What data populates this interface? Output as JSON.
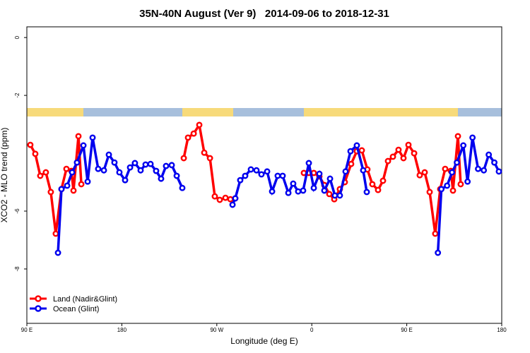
{
  "chart_data": {
    "type": "line",
    "title": "35N-40N August (Ver 9)   2014-09-06 to 2018-12-31",
    "x_label": "Longitude (deg E)",
    "y_label": "XCO2 - MLO trend (ppm)",
    "xlim": [
      90,
      540
    ],
    "xticks": [
      {
        "value": 90,
        "label": "90 E"
      },
      {
        "value": 180,
        "label": "180"
      },
      {
        "value": 270,
        "label": "90 W"
      },
      {
        "value": 360,
        "label": "0"
      },
      {
        "value": 450,
        "label": "90 E"
      },
      {
        "value": 540,
        "label": "180"
      }
    ],
    "ylim": [
      -9.88,
      0.37
    ],
    "yticks": [
      0,
      -2,
      -6,
      -8
    ],
    "legend": "bottom-left",
    "series": [
      {
        "name": "Land (Nadir&Glint)",
        "color": "#ff0000",
        "x": [
          93.3,
          98,
          102.7,
          108,
          112.7,
          117.4,
          122.8,
          127.5,
          132.2,
          134.2,
          138.9,
          141.6,
          null,
          238.7,
          242.7,
          248.1,
          253.4,
          258.1,
          263.5,
          268.1,
          272.8,
          278.2,
          282.9,
          287.5,
          null,
          352.5,
          357.2,
          361.9,
          367.2,
          371.9,
          376.6,
          381.3,
          386.6,
          391.3,
          397.3,
          402.7,
          407.4,
          412.7,
          417.4,
          422.8,
          427.5,
          432.2,
          436.9,
          442.2,
          446.9,
          451.6,
          457,
          462.3,
          467,
          471.7,
          477,
          481.7,
          486.4,
          491.8,
          493.8,
          498.5,
          501.1
        ],
        "values": [
          -3.71,
          -4.02,
          -4.78,
          -4.66,
          -5.34,
          -6.78,
          -5.24,
          -4.54,
          -4.61,
          -5.29,
          -3.41,
          -5.07,
          null,
          -4.17,
          -3.46,
          -3.32,
          -3.02,
          -3.98,
          -4.17,
          -5.49,
          -5.61,
          -5.54,
          -5.59,
          -5.56,
          null,
          -4.68,
          -4.68,
          -4.68,
          -4.8,
          -5.1,
          -5.41,
          -5.59,
          -5.24,
          -5,
          -4.37,
          -3.93,
          -3.9,
          -4.56,
          -5.07,
          -5.27,
          -4.95,
          -4.27,
          -4.12,
          -3.88,
          -4.17,
          -3.71,
          -4,
          -4.76,
          -4.66,
          -5.34,
          -6.78,
          -5.24,
          -4.54,
          -4.61,
          -5.29,
          -3.41,
          -5.07
        ]
      },
      {
        "name": "Ocean (Glint)",
        "color": "#0000ee",
        "x": [
          119.5,
          122.8,
          128.2,
          132.9,
          137.5,
          143.6,
          147.6,
          152.3,
          157.6,
          163,
          167.7,
          173,
          177.7,
          183.1,
          187.8,
          192.4,
          197.8,
          202.5,
          207.2,
          212.5,
          217.2,
          221.9,
          227.3,
          232,
          237.3,
          null,
          284.9,
          287.5,
          292.2,
          296.9,
          302.3,
          307.6,
          312.3,
          317.7,
          322.4,
          327.7,
          332.4,
          337.8,
          342.4,
          347.1,
          351.8,
          357.2,
          361.9,
          367.2,
          371.9,
          377.3,
          381.9,
          386.6,
          392,
          396.7,
          402.7,
          408.7,
          412.1,
          null,
          479.5,
          482.8,
          488.2,
          492.9,
          497.5,
          503.6,
          507.6,
          512.3,
          517.6,
          523,
          527.7,
          533,
          537.3
        ],
        "values": [
          -7.44,
          -5.24,
          -5.12,
          -4.66,
          -4.32,
          -3.73,
          -4.98,
          -3.46,
          -4.54,
          -4.59,
          -4.05,
          -4.32,
          -4.66,
          -4.93,
          -4.49,
          -4.34,
          -4.59,
          -4.39,
          -4.37,
          -4.61,
          -4.88,
          -4.44,
          -4.41,
          -4.78,
          -5.2,
          null,
          -5.78,
          -5.56,
          -4.93,
          -4.78,
          -4.56,
          -4.59,
          -4.73,
          -4.63,
          -5.32,
          -4.78,
          -4.78,
          -5.37,
          -5.05,
          -5.32,
          -5.29,
          -4.34,
          -5.2,
          -4.71,
          -5.29,
          -4.88,
          -5.46,
          -5.46,
          -4.63,
          -3.93,
          -3.73,
          -4.59,
          -5.34,
          null,
          -7.44,
          -5.24,
          -5.12,
          -4.66,
          -4.32,
          -3.73,
          -4.98,
          -3.46,
          -4.54,
          -4.59,
          -4.05,
          -4.32,
          -4.63
        ]
      }
    ]
  }
}
